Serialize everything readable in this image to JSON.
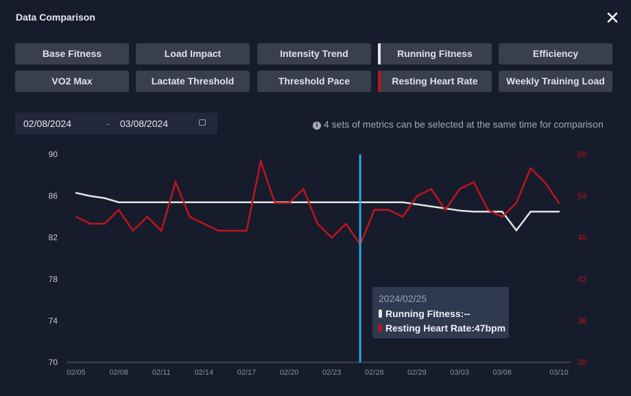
{
  "header": {
    "title": "Data Comparison",
    "close_icon": "close-icon"
  },
  "metrics": [
    {
      "label": "Base Fitness",
      "selected": false
    },
    {
      "label": "Load Impact",
      "selected": false
    },
    {
      "label": "Intensity Trend",
      "selected": false
    },
    {
      "label": "Running Fitness",
      "selected": true,
      "color": "#e6e6e6"
    },
    {
      "label": "Efficiency",
      "selected": false
    },
    {
      "label": "VO2 Max",
      "selected": false
    },
    {
      "label": "Lactate Threshold",
      "selected": false
    },
    {
      "label": "Threshold Pace",
      "selected": false
    },
    {
      "label": "Resting Heart Rate",
      "selected": true,
      "color": "#c0141e"
    },
    {
      "label": "Weekly Training Load",
      "selected": false
    }
  ],
  "date_range": {
    "start": "02/08/2024",
    "separator": "-",
    "end": "03/08/2024",
    "icon": "calendar-icon"
  },
  "info_text": "4 sets of metrics can be selected at the same time for comparison",
  "tooltip": {
    "date": "2024/02/25",
    "rows": [
      {
        "text": "Running Fitness:--",
        "color": "#e6e6e6"
      },
      {
        "text": "Resting Heart Rate:47bpm",
        "color": "#c0141e"
      }
    ]
  },
  "chart_data": {
    "type": "line",
    "x": [
      "02/05",
      "02/06",
      "02/07",
      "02/08",
      "02/09",
      "02/10",
      "02/11",
      "02/12",
      "02/13",
      "02/14",
      "02/15",
      "02/16",
      "02/17",
      "02/18",
      "02/19",
      "02/20",
      "02/21",
      "02/22",
      "02/23",
      "02/24",
      "02/25",
      "02/26",
      "02/27",
      "02/28",
      "02/29",
      "03/01",
      "03/02",
      "03/03",
      "03/04",
      "03/05",
      "03/06",
      "03/07",
      "03/08",
      "03/09",
      "03/10"
    ],
    "x_tick_labels": [
      "02/05",
      "02/08",
      "02/11",
      "02/14",
      "02/17",
      "02/20",
      "02/23",
      "02/26",
      "02/29",
      "03/03",
      "03/06",
      "03/10"
    ],
    "y_left": {
      "ticks": [
        70,
        74,
        78,
        82,
        86,
        90
      ],
      "ylim": [
        70,
        90
      ]
    },
    "y_right": {
      "ticks": [
        30,
        36,
        42,
        48,
        54,
        60
      ],
      "ylim": [
        30,
        60
      ],
      "color": "#b0141c"
    },
    "highlight_x": "02/25",
    "highlight_color": "#29a8e0",
    "grid": false,
    "series": [
      {
        "name": "Running Fitness",
        "axis": "left",
        "color": "#e6e6e6",
        "values": [
          86.3,
          86.0,
          85.8,
          85.4,
          85.4,
          85.4,
          85.4,
          85.4,
          85.4,
          85.4,
          85.4,
          85.4,
          85.4,
          85.4,
          85.4,
          85.4,
          85.4,
          85.4,
          85.4,
          85.4,
          85.4,
          85.4,
          85.4,
          85.4,
          85.2,
          85.0,
          84.8,
          84.6,
          84.5,
          84.5,
          84.5,
          82.7,
          84.5,
          84.5,
          84.5
        ]
      },
      {
        "name": "Resting Heart Rate",
        "axis": "right",
        "color": "#c0141e",
        "values": [
          51,
          50,
          50,
          52,
          49,
          51,
          49,
          56,
          51,
          50,
          49,
          49,
          49,
          59,
          53,
          53,
          55,
          50,
          48,
          50,
          47,
          52,
          52,
          51,
          54,
          55,
          52,
          55,
          56,
          52,
          51,
          53,
          58,
          56,
          53
        ]
      }
    ]
  }
}
